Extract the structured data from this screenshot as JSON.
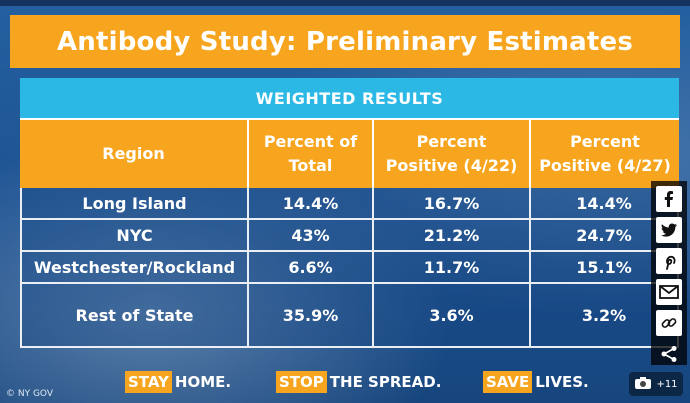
{
  "title": "Antibody Study: Preliminary Estimates",
  "table": {
    "caption": "WEIGHTED RESULTS",
    "headers": {
      "region": "Region",
      "pct_total_l1": "Percent of",
      "pct_total_l2": "Total",
      "pct_pos1_l1": "Percent",
      "pct_pos1_l2": "Positive (4/22)",
      "pct_pos2_l1": "Percent",
      "pct_pos2_l2": "Positive (4/27)"
    },
    "rows": [
      {
        "region": "Long Island",
        "total": "14.4%",
        "pos_422": "16.7%",
        "pos_427": "14.4%"
      },
      {
        "region": "NYC",
        "total": "43%",
        "pos_422": "21.2%",
        "pos_427": "24.7%"
      },
      {
        "region": "Westchester/Rockland",
        "total": "6.6%",
        "pos_422": "11.7%",
        "pos_427": "15.1%"
      },
      {
        "region": "Rest of State",
        "total": "35.9%",
        "pos_422": "3.6%",
        "pos_427": "3.2%"
      }
    ]
  },
  "slogans": [
    {
      "highlight": "STAY",
      "rest": "HOME."
    },
    {
      "highlight": "STOP",
      "rest": "THE SPREAD."
    },
    {
      "highlight": "SAVE",
      "rest": "LIVES."
    }
  ],
  "credit": "© NY GOV",
  "photo_count": "+11",
  "share_icons": [
    "facebook-icon",
    "twitter-icon",
    "pinterest-icon",
    "email-icon",
    "link-icon",
    "share-icon"
  ],
  "colors": {
    "orange": "#f7a51e",
    "cyan": "#2cb8e4",
    "background": "#1e4f86"
  }
}
